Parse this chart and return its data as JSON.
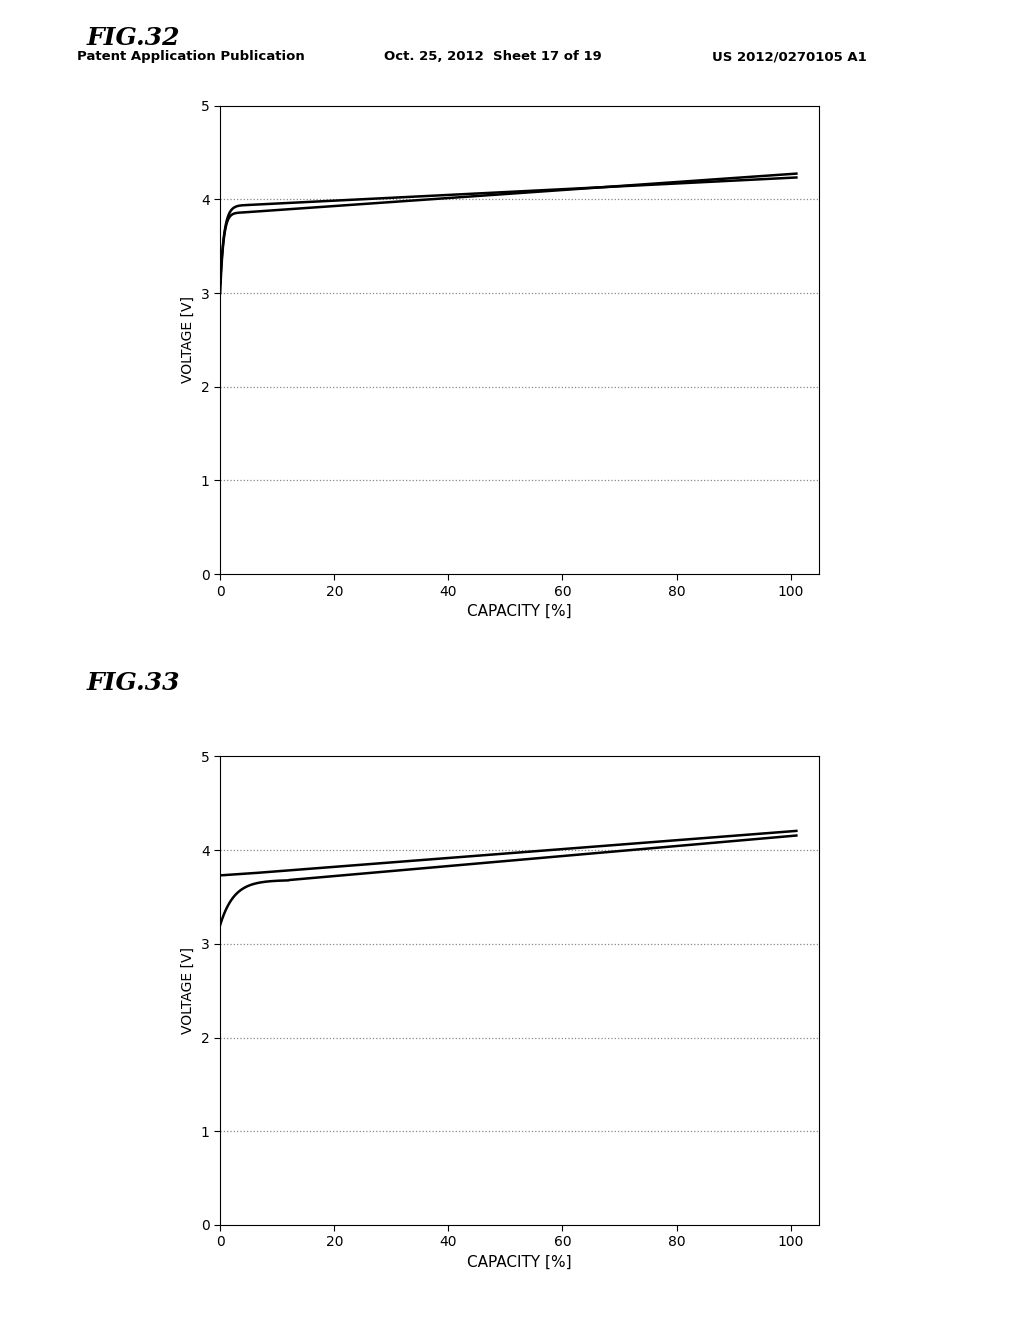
{
  "fig32": {
    "title": "FIG.32",
    "xlabel": "CAPACITY [%]",
    "ylabel": "VOLTAGE [V]",
    "xlim": [
      0,
      105
    ],
    "ylim": [
      0,
      5
    ],
    "xticks": [
      0,
      20,
      40,
      60,
      80,
      100
    ],
    "yticks": [
      0,
      1,
      2,
      3,
      4,
      5
    ],
    "grid_yticks": [
      1,
      2,
      3,
      4
    ],
    "c1_start_y": 3.0,
    "c1_knee_x": 4.0,
    "c1_knee_y": 3.86,
    "c1_end_y": 4.27,
    "c2_start_y": 3.1,
    "c2_knee_x": 5.0,
    "c2_knee_y": 3.94,
    "c2_end_y": 4.23
  },
  "fig33": {
    "title": "FIG.33",
    "xlabel": "CAPACITY [%]",
    "ylabel": "VOLTAGE [V]",
    "xlim": [
      0,
      105
    ],
    "ylim": [
      0,
      5
    ],
    "xticks": [
      0,
      20,
      40,
      60,
      80,
      100
    ],
    "yticks": [
      0,
      1,
      2,
      3,
      4,
      5
    ],
    "grid_yticks": [
      1,
      2,
      3,
      4
    ],
    "c1_start_y": 3.73,
    "c1_flat_end_x": 5.0,
    "c1_end_y": 4.2,
    "c2_start_y": 3.2,
    "c2_knee_x": 12.0,
    "c2_knee_y": 3.68,
    "c2_end_y": 4.15
  },
  "header_left": "Patent Application Publication",
  "header_center": "Oct. 25, 2012  Sheet 17 of 19",
  "header_right": "US 2012/0270105 A1",
  "bg_color": "#ffffff",
  "grid_color": "#888888"
}
